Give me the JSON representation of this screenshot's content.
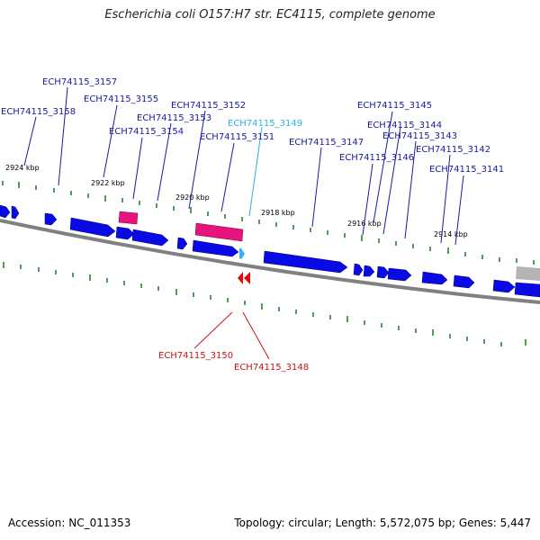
{
  "title": "Escherichia coli O157:H7 str. EC4115, complete genome",
  "footer": {
    "accession": "Accession: NC_011353",
    "topology": "Topology: circular; Length: 5,572,075 bp; Genes: 5,447"
  },
  "colors": {
    "forward_gene": "#0a0ae6",
    "reverse_gene": "#e60a0a",
    "pseudo_gene": "#e6147d",
    "highlight_gene": "#32b4f0",
    "backbone": "#808080",
    "tick": "#1e7a1e",
    "label_forward": "#1a1aa0",
    "label_reverse": "#c81414",
    "label_highlight": "#28b4dc"
  },
  "kbp_ticks": [
    "2924 kbp",
    "2922 kbp",
    "2920 kbp",
    "2918 kbp",
    "2916 kbp",
    "2914 kbp"
  ],
  "gene_labels_top": [
    "ECH74115_3157",
    "ECH74115_3158",
    "ECH74115_3155",
    "ECH74115_3152",
    "ECH74115_3153",
    "ECH74115_3154",
    "ECH74115_3149",
    "ECH74115_3151",
    "ECH74115_3147",
    "ECH74115_3145",
    "ECH74115_3144",
    "ECH74115_3143",
    "ECH74115_3146",
    "ECH74115_3142",
    "ECH74115_3141"
  ],
  "gene_labels_bottom": [
    "ECH74115_3150",
    "ECH74115_3148"
  ]
}
